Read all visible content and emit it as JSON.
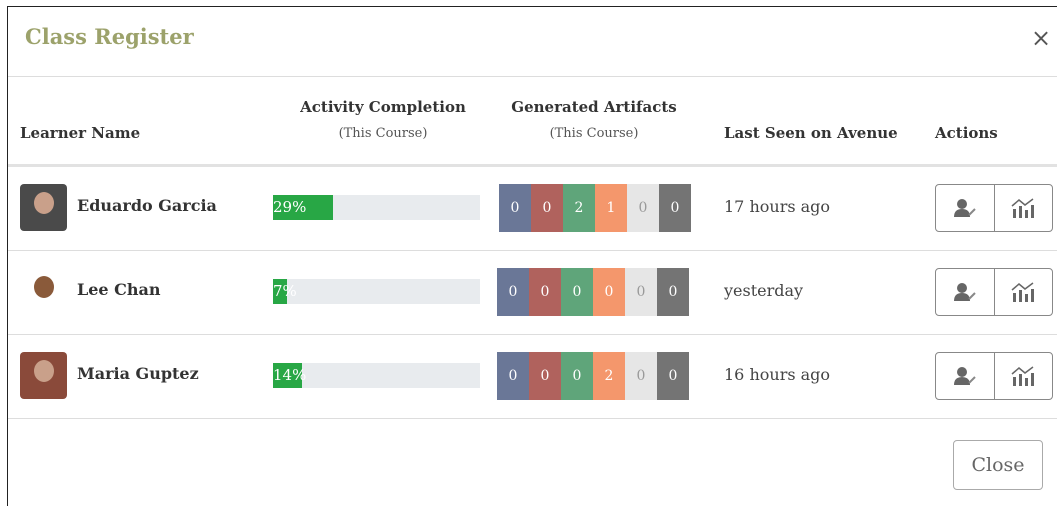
{
  "header": {
    "title": "Class Register",
    "close_icon": "×"
  },
  "table": {
    "columns": [
      {
        "label": "Learner Name"
      },
      {
        "label": "Activity Completion",
        "sub": "(This Course)"
      },
      {
        "label": "Generated Artifacts",
        "sub": "(This Course)"
      },
      {
        "label": "Last Seen on Avenue"
      },
      {
        "label": "Actions"
      }
    ],
    "rows": [
      {
        "name": "Eduardo Garcia",
        "completion": {
          "value": 29,
          "label": "29%"
        },
        "artifacts": [
          0,
          0,
          2,
          1,
          0,
          0
        ],
        "last_seen": "17 hours ago"
      },
      {
        "name": "Lee Chan",
        "completion": {
          "value": 7,
          "label": "7%"
        },
        "artifacts": [
          0,
          0,
          0,
          0,
          0,
          0
        ],
        "last_seen": "yesterday"
      },
      {
        "name": "Maria Guptez",
        "completion": {
          "value": 14,
          "label": "14%"
        },
        "artifacts": [
          0,
          0,
          0,
          2,
          0,
          0
        ],
        "last_seen": "16 hours ago"
      }
    ]
  },
  "footer": {
    "close_button": "Close"
  }
}
